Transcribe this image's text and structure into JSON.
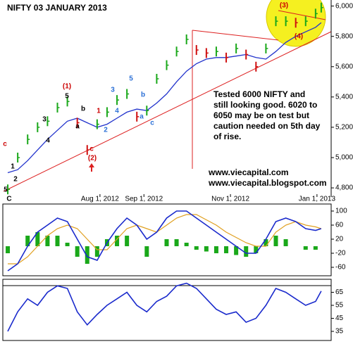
{
  "chart_data": [
    {
      "type": "price",
      "title": "NIFTY 03 JANUARY 2013",
      "x": [
        "2012-05-28",
        "2012-06-04",
        "2012-06-11",
        "2012-06-18",
        "2012-06-25",
        "2012-07-02",
        "2012-07-09",
        "2012-07-16",
        "2012-07-23",
        "2012-07-30",
        "2012-08-06",
        "2012-08-13",
        "2012-08-20",
        "2012-08-27",
        "2012-09-03",
        "2012-09-10",
        "2012-09-17",
        "2012-09-24",
        "2012-10-01",
        "2012-10-08",
        "2012-10-15",
        "2012-10-22",
        "2012-10-29",
        "2012-11-05",
        "2012-11-12",
        "2012-11-19",
        "2012-11-26",
        "2012-12-03",
        "2012-12-10",
        "2012-12-17",
        "2012-12-24",
        "2012-12-31",
        "2013-01-04"
      ],
      "values": [
        4790,
        5000,
        5120,
        5200,
        5240,
        5330,
        5370,
        5230,
        5050,
        5220,
        5300,
        5380,
        5420,
        5270,
        5310,
        5520,
        5610,
        5700,
        5780,
        5710,
        5690,
        5700,
        5660,
        5720,
        5680,
        5600,
        5720,
        5900,
        5900,
        5890,
        5900,
        5950,
        5990
      ],
      "average_values": [
        4900,
        4920,
        4980,
        5050,
        5120,
        5180,
        5240,
        5260,
        5230,
        5200,
        5220,
        5260,
        5300,
        5320,
        5310,
        5360,
        5420,
        5500,
        5570,
        5620,
        5650,
        5660,
        5660,
        5670,
        5680,
        5660,
        5650,
        5700,
        5760,
        5800,
        5830,
        5860,
        5890
      ],
      "up_color": "#1aa81a",
      "down_color": "#d01010",
      "average_color": "#2233cc",
      "xlim": [
        "2012-05-25",
        "2013-01-11"
      ],
      "xticks": [
        {
          "value": "2012-08-01",
          "label": "Aug 1, 2012"
        },
        {
          "value": "2012-09-01",
          "label": "Sep 1, 2012"
        },
        {
          "value": "2012-11-01",
          "label": "Nov 1, 2012"
        },
        {
          "value": "2013-01-01",
          "label": "Jan 1, 2013"
        }
      ],
      "ylim": [
        4740,
        6040
      ],
      "yticks": [
        {
          "value": 4800,
          "label": "4,800"
        },
        {
          "value": 5000,
          "label": "5,000"
        },
        {
          "value": 5200,
          "label": "5,200"
        },
        {
          "value": 5400,
          "label": "5,400"
        },
        {
          "value": 5600,
          "label": "5,600"
        },
        {
          "value": 5800,
          "label": "5,800"
        },
        {
          "value": 6000,
          "label": "6,000"
        }
      ],
      "note_lines": [
        "Tested 6000 NIFTY and",
        "still looking good. 6020 to",
        "6050 may be on test but",
        "caution needed on 5th day",
        "of rise."
      ],
      "links": [
        "www.viecapital.com",
        "www.viecapital.blogspot.com"
      ],
      "wave_labels": [
        {
          "text": "5",
          "color": "#000000"
        },
        {
          "text": "1",
          "color": "#000000"
        },
        {
          "text": "2",
          "color": "#000000"
        },
        {
          "text": "c",
          "color": "#cc0000"
        },
        {
          "text": "(1)",
          "color": "#cc0000"
        },
        {
          "text": "5",
          "color": "#000000"
        },
        {
          "text": "b",
          "color": "#000000"
        },
        {
          "text": "a",
          "color": "#000000"
        },
        {
          "text": "3",
          "color": "#000000"
        },
        {
          "text": "4",
          "color": "#000000"
        },
        {
          "text": "c",
          "color": "#cc0000"
        },
        {
          "text": "(2)",
          "color": "#cc0000"
        },
        {
          "text": "1",
          "color": "#cc0000"
        },
        {
          "text": "2",
          "color": "#2a6fd6"
        },
        {
          "text": "3",
          "color": "#2a6fd6"
        },
        {
          "text": "4",
          "color": "#2a6fd6"
        },
        {
          "text": "5",
          "color": "#2a6fd6"
        },
        {
          "text": "b",
          "color": "#2a6fd6"
        },
        {
          "text": "a",
          "color": "#2a6fd6"
        },
        {
          "text": "c",
          "color": "#2a6fd6"
        },
        {
          "text": "(3)",
          "color": "#cc0000"
        },
        {
          "text": "(4)",
          "color": "#cc0000"
        },
        {
          "text": "C",
          "color": "#000000"
        }
      ]
    },
    {
      "type": "oscillator",
      "x": [
        "2012-05-28",
        "2012-06-04",
        "2012-06-11",
        "2012-06-18",
        "2012-06-25",
        "2012-07-02",
        "2012-07-09",
        "2012-07-16",
        "2012-07-23",
        "2012-07-30",
        "2012-08-06",
        "2012-08-13",
        "2012-08-20",
        "2012-08-27",
        "2012-09-03",
        "2012-09-10",
        "2012-09-17",
        "2012-09-24",
        "2012-10-01",
        "2012-10-08",
        "2012-10-15",
        "2012-10-22",
        "2012-10-29",
        "2012-11-05",
        "2012-11-12",
        "2012-11-19",
        "2012-11-26",
        "2012-12-03",
        "2012-12-10",
        "2012-12-17",
        "2012-12-24",
        "2012-12-31",
        "2013-01-04"
      ],
      "values": [
        -70,
        -50,
        0,
        40,
        60,
        80,
        70,
        20,
        -30,
        -40,
        10,
        50,
        80,
        60,
        20,
        40,
        80,
        100,
        100,
        80,
        60,
        40,
        20,
        0,
        -20,
        -20,
        20,
        70,
        80,
        70,
        50,
        45,
        50
      ],
      "signal_values": [
        -50,
        -50,
        -30,
        0,
        30,
        50,
        60,
        50,
        20,
        -10,
        -10,
        20,
        50,
        60,
        50,
        40,
        60,
        80,
        90,
        90,
        75,
        60,
        40,
        25,
        10,
        0,
        0,
        40,
        60,
        70,
        60,
        55,
        50
      ],
      "histogram_values": [
        -20,
        0,
        30,
        40,
        30,
        30,
        10,
        -30,
        -50,
        -30,
        20,
        30,
        30,
        0,
        -30,
        0,
        20,
        20,
        10,
        -10,
        -15,
        -20,
        -20,
        -25,
        -30,
        -20,
        20,
        30,
        20,
        0,
        -10,
        -10,
        0
      ],
      "color": "#1a2acc",
      "signal_color": "#e0a020",
      "histogram_color": "#1aa81a",
      "xlim": [
        "2012-05-25",
        "2013-01-11"
      ],
      "ylim": [
        -84,
        120
      ],
      "yticks": [
        100,
        60,
        20,
        -20,
        -60
      ]
    },
    {
      "type": "oscillator",
      "x": [
        "2012-05-28",
        "2012-06-04",
        "2012-06-11",
        "2012-06-18",
        "2012-06-25",
        "2012-07-02",
        "2012-07-09",
        "2012-07-16",
        "2012-07-23",
        "2012-07-30",
        "2012-08-06",
        "2012-08-13",
        "2012-08-20",
        "2012-08-27",
        "2012-09-03",
        "2012-09-10",
        "2012-09-17",
        "2012-09-24",
        "2012-10-01",
        "2012-10-08",
        "2012-10-15",
        "2012-10-22",
        "2012-10-29",
        "2012-11-05",
        "2012-11-12",
        "2012-11-19",
        "2012-11-26",
        "2012-12-03",
        "2012-12-10",
        "2012-12-17",
        "2012-12-24",
        "2012-12-31",
        "2013-01-04"
      ],
      "values": [
        35,
        50,
        60,
        55,
        65,
        70,
        68,
        50,
        40,
        48,
        55,
        60,
        65,
        55,
        50,
        58,
        62,
        70,
        72,
        68,
        60,
        52,
        48,
        50,
        42,
        45,
        55,
        68,
        65,
        60,
        55,
        58,
        66
      ],
      "color": "#1a2acc",
      "xlim": [
        "2012-05-25",
        "2013-01-11"
      ],
      "ylim": [
        28,
        75
      ],
      "yticks": [
        65,
        55,
        45,
        35
      ]
    }
  ]
}
